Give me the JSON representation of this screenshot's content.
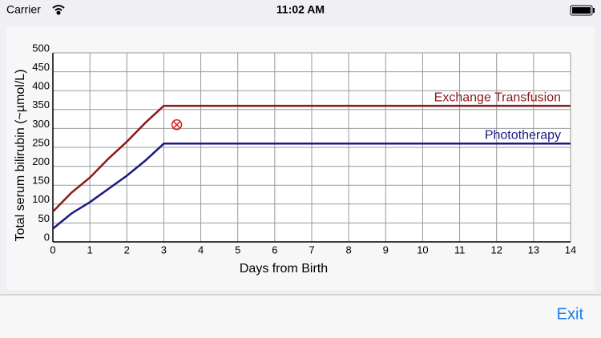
{
  "status_bar": {
    "carrier": "Carrier",
    "time": "11:02 AM"
  },
  "chart_data": {
    "type": "line",
    "xlabel": "Days from Birth",
    "ylabel": "Total serum bilirubin (~µmol/L)",
    "xlim": [
      0,
      14
    ],
    "xticks": [
      0,
      1,
      2,
      3,
      4,
      5,
      6,
      7,
      8,
      9,
      10,
      11,
      12,
      13,
      14
    ],
    "ylim": [
      0,
      500
    ],
    "yticks": [
      0,
      50,
      100,
      150,
      200,
      250,
      300,
      350,
      400,
      450,
      500
    ],
    "grid": true,
    "series": [
      {
        "name": "Exchange Transfusion",
        "color": "#8b1a1a",
        "x": [
          0,
          0.5,
          1,
          1.5,
          2,
          2.5,
          3,
          14
        ],
        "values": [
          80,
          130,
          170,
          220,
          265,
          315,
          360,
          360
        ]
      },
      {
        "name": "Phototherapy",
        "color": "#1a1a80",
        "x": [
          0,
          0.5,
          1,
          1.5,
          2,
          2.5,
          3,
          14
        ],
        "values": [
          35,
          75,
          105,
          140,
          175,
          215,
          260,
          260
        ]
      }
    ],
    "markers": {
      "color": "#e02020",
      "x": [
        3.35
      ],
      "y": [
        310
      ]
    }
  },
  "toolbar": {
    "exit": "Exit"
  }
}
